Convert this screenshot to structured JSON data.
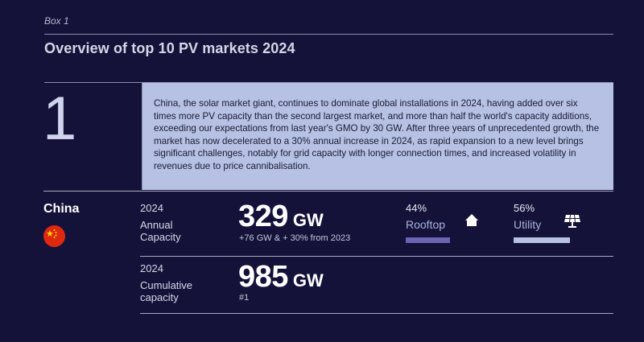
{
  "header": {
    "box_label": "Box 1",
    "title": "Overview of top 10 PV markets 2024"
  },
  "entry": {
    "rank": "1",
    "description": "China, the solar market giant, continues to dominate global installations in 2024, having added over six times more PV capacity than the second largest market, and more than half the world's capacity additions, exceeding our expectations from last year's GMO by 30 GW. After three years of unprecedented growth, the market has now decelerated to a 30% annual increase in 2024, as rapid expansion to a new level brings significant challenges, notably for grid capacity with longer connection times, and increased volatility in revenues due to price cannibalisation.",
    "country": "China",
    "flag_icon": "china-flag-icon",
    "annual": {
      "year": "2024",
      "label_line1": "Annual",
      "label_line2": "Capacity",
      "value": "329",
      "unit": "GW",
      "note": "+76 GW & + 30% from 2023"
    },
    "cumulative": {
      "year": "2024",
      "label_line1": "Cumulative",
      "label_line2": "capacity",
      "value": "985",
      "unit": "GW",
      "note": "#1"
    },
    "segments": [
      {
        "pct": "44%",
        "label": "Rooftop",
        "share": 0.44,
        "color": "#6c63b3",
        "icon": "house-icon"
      },
      {
        "pct": "56%",
        "label": "Utility",
        "share": 0.56,
        "color": "#b6c1e4",
        "icon": "solar-panel-icon"
      }
    ]
  }
}
